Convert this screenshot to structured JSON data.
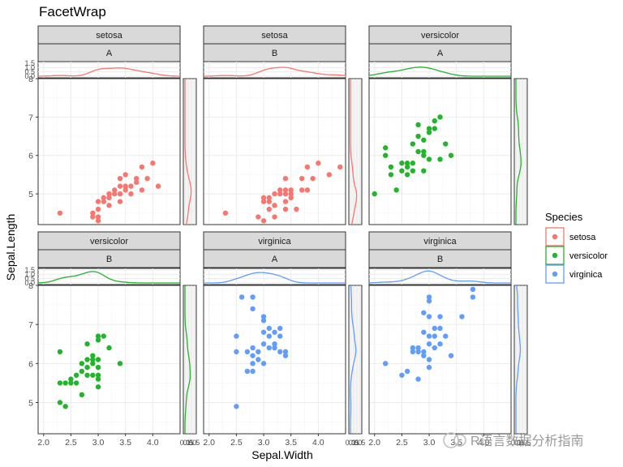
{
  "chart_data": {
    "type": "scatter",
    "title": "FacetWrap",
    "xlabel": "Sepal.Width",
    "ylabel": "Sepal.Length",
    "xlim": [
      1.9,
      4.5
    ],
    "ylim": [
      4.2,
      8.0
    ],
    "x_ticks": [
      "2.0",
      "2.5",
      "3.0",
      "3.5",
      "4.0"
    ],
    "x_tick_values": [
      2.0,
      2.5,
      3.0,
      3.5,
      4.0
    ],
    "y_ticks": [
      "5",
      "6",
      "7",
      "8"
    ],
    "y_tick_values": [
      5,
      6,
      7,
      8
    ],
    "top_density_ticks": [
      "0.0",
      "0.5",
      "1.0",
      "1.5"
    ],
    "right_density_ticks": [
      "0.0",
      "0.5",
      "1.0",
      "1.5"
    ],
    "legend": {
      "title": "Species",
      "entries": [
        "setosa",
        "versicolor",
        "virginica"
      ]
    },
    "colors": {
      "setosa": "#f8766d",
      "versicolor": "#22b42b",
      "virginica": "#619cff"
    },
    "panels": [
      {
        "species": "setosa",
        "group": "A",
        "points": [
          [
            2.3,
            4.5
          ],
          [
            2.9,
            4.4
          ],
          [
            2.9,
            4.5
          ],
          [
            3.0,
            4.4
          ],
          [
            3.0,
            4.6
          ],
          [
            3.0,
            4.8
          ],
          [
            3.1,
            4.8
          ],
          [
            3.1,
            4.9
          ],
          [
            3.2,
            4.7
          ],
          [
            3.2,
            4.9
          ],
          [
            3.2,
            5.0
          ],
          [
            3.3,
            5.1
          ],
          [
            3.4,
            4.8
          ],
          [
            3.4,
            5.0
          ],
          [
            3.4,
            5.2
          ],
          [
            3.4,
            5.4
          ],
          [
            3.5,
            5.1
          ],
          [
            3.5,
            5.5
          ],
          [
            3.6,
            5.0
          ],
          [
            3.6,
            5.2
          ],
          [
            3.7,
            5.3
          ],
          [
            3.7,
            5.4
          ],
          [
            3.8,
            5.1
          ],
          [
            3.8,
            5.7
          ],
          [
            3.9,
            5.4
          ],
          [
            4.0,
            5.8
          ],
          [
            4.1,
            5.2
          ],
          [
            3.0,
            4.3
          ],
          [
            3.3,
            5.0
          ],
          [
            3.5,
            5.2
          ]
        ]
      },
      {
        "species": "setosa",
        "group": "B",
        "points": [
          [
            2.3,
            4.5
          ],
          [
            2.9,
            4.4
          ],
          [
            3.0,
            4.3
          ],
          [
            3.0,
            4.8
          ],
          [
            3.0,
            4.9
          ],
          [
            3.1,
            4.6
          ],
          [
            3.1,
            4.9
          ],
          [
            3.2,
            4.4
          ],
          [
            3.2,
            4.7
          ],
          [
            3.2,
            5.0
          ],
          [
            3.3,
            5.0
          ],
          [
            3.3,
            5.1
          ],
          [
            3.4,
            4.8
          ],
          [
            3.4,
            5.0
          ],
          [
            3.4,
            5.1
          ],
          [
            3.4,
            5.4
          ],
          [
            3.5,
            4.9
          ],
          [
            3.5,
            5.0
          ],
          [
            3.6,
            4.6
          ],
          [
            3.7,
            5.1
          ],
          [
            3.7,
            5.4
          ],
          [
            3.8,
            5.1
          ],
          [
            3.9,
            5.4
          ],
          [
            4.0,
            5.8
          ],
          [
            4.2,
            5.5
          ],
          [
            4.4,
            5.7
          ],
          [
            3.1,
            4.8
          ],
          [
            3.4,
            4.6
          ],
          [
            3.5,
            5.1
          ],
          [
            3.8,
            5.7
          ]
        ]
      },
      {
        "species": "versicolor",
        "group": "A",
        "points": [
          [
            2.0,
            5.0
          ],
          [
            2.2,
            6.0
          ],
          [
            2.2,
            6.2
          ],
          [
            2.3,
            5.5
          ],
          [
            2.3,
            5.7
          ],
          [
            2.4,
            5.1
          ],
          [
            2.5,
            5.6
          ],
          [
            2.5,
            5.8
          ],
          [
            2.6,
            5.5
          ],
          [
            2.6,
            5.8
          ],
          [
            2.7,
            5.6
          ],
          [
            2.7,
            6.3
          ],
          [
            2.8,
            6.1
          ],
          [
            2.8,
            6.5
          ],
          [
            2.9,
            5.6
          ],
          [
            2.9,
            6.0
          ],
          [
            2.9,
            6.4
          ],
          [
            3.0,
            5.9
          ],
          [
            3.0,
            6.6
          ],
          [
            3.0,
            6.7
          ],
          [
            3.1,
            6.7
          ],
          [
            3.1,
            6.9
          ],
          [
            3.2,
            7.0
          ],
          [
            3.2,
            5.9
          ],
          [
            3.3,
            6.3
          ],
          [
            2.8,
            6.8
          ],
          [
            3.4,
            6.0
          ],
          [
            2.9,
            6.1
          ],
          [
            2.6,
            5.7
          ],
          [
            2.7,
            5.8
          ]
        ]
      },
      {
        "species": "versicolor",
        "group": "B",
        "points": [
          [
            2.3,
            5.0
          ],
          [
            2.3,
            5.5
          ],
          [
            2.3,
            6.3
          ],
          [
            2.4,
            4.9
          ],
          [
            2.4,
            5.5
          ],
          [
            2.5,
            5.5
          ],
          [
            2.6,
            5.7
          ],
          [
            2.7,
            5.8
          ],
          [
            2.7,
            6.0
          ],
          [
            2.8,
            5.7
          ],
          [
            2.8,
            6.1
          ],
          [
            2.8,
            5.9
          ],
          [
            2.9,
            6.0
          ],
          [
            2.9,
            6.1
          ],
          [
            2.9,
            6.2
          ],
          [
            3.0,
            5.4
          ],
          [
            3.0,
            5.6
          ],
          [
            3.0,
            5.9
          ],
          [
            3.0,
            6.1
          ],
          [
            3.0,
            6.6
          ],
          [
            3.0,
            6.7
          ],
          [
            3.1,
            6.7
          ],
          [
            3.2,
            6.4
          ],
          [
            3.4,
            6.0
          ],
          [
            2.5,
            5.6
          ],
          [
            2.9,
            5.7
          ],
          [
            3.0,
            5.7
          ],
          [
            2.7,
            5.2
          ],
          [
            2.6,
            5.5
          ],
          [
            2.8,
            6.5
          ]
        ]
      },
      {
        "species": "virginica",
        "group": "A",
        "points": [
          [
            2.5,
            4.9
          ],
          [
            2.5,
            6.3
          ],
          [
            2.5,
            6.7
          ],
          [
            2.6,
            7.7
          ],
          [
            2.7,
            5.8
          ],
          [
            2.7,
            6.3
          ],
          [
            2.8,
            5.8
          ],
          [
            2.8,
            6.2
          ],
          [
            2.8,
            6.4
          ],
          [
            2.8,
            7.4
          ],
          [
            2.8,
            7.7
          ],
          [
            2.9,
            6.3
          ],
          [
            3.0,
            6.5
          ],
          [
            3.0,
            6.8
          ],
          [
            3.0,
            7.2
          ],
          [
            3.1,
            6.4
          ],
          [
            3.1,
            6.9
          ],
          [
            3.2,
            6.5
          ],
          [
            3.2,
            6.8
          ],
          [
            3.3,
            6.3
          ],
          [
            3.3,
            6.7
          ],
          [
            3.4,
            6.2
          ],
          [
            3.4,
            6.3
          ],
          [
            3.0,
            7.1
          ],
          [
            3.1,
            6.7
          ],
          [
            2.9,
            6.1
          ],
          [
            3.3,
            6.9
          ],
          [
            2.8,
            6.0
          ],
          [
            3.2,
            6.4
          ],
          [
            3.0,
            6.0
          ]
        ]
      },
      {
        "species": "virginica",
        "group": "B",
        "points": [
          [
            2.2,
            6.0
          ],
          [
            2.5,
            5.7
          ],
          [
            2.6,
            5.8
          ],
          [
            2.7,
            6.3
          ],
          [
            2.7,
            6.4
          ],
          [
            2.8,
            5.6
          ],
          [
            2.8,
            6.3
          ],
          [
            2.8,
            6.4
          ],
          [
            2.9,
            6.3
          ],
          [
            2.9,
            7.3
          ],
          [
            3.0,
            5.9
          ],
          [
            3.0,
            6.1
          ],
          [
            3.0,
            6.5
          ],
          [
            3.0,
            7.2
          ],
          [
            3.0,
            7.6
          ],
          [
            3.0,
            7.7
          ],
          [
            3.1,
            6.9
          ],
          [
            3.1,
            6.4
          ],
          [
            3.2,
            6.5
          ],
          [
            3.2,
            6.9
          ],
          [
            3.2,
            7.2
          ],
          [
            3.3,
            6.7
          ],
          [
            3.4,
            6.2
          ],
          [
            3.6,
            7.2
          ],
          [
            3.8,
            7.7
          ],
          [
            3.8,
            7.9
          ],
          [
            2.9,
            6.8
          ],
          [
            3.0,
            6.7
          ],
          [
            3.1,
            6.7
          ],
          [
            2.9,
            6.2
          ]
        ]
      }
    ]
  },
  "watermark": "R语言数据分析指南"
}
